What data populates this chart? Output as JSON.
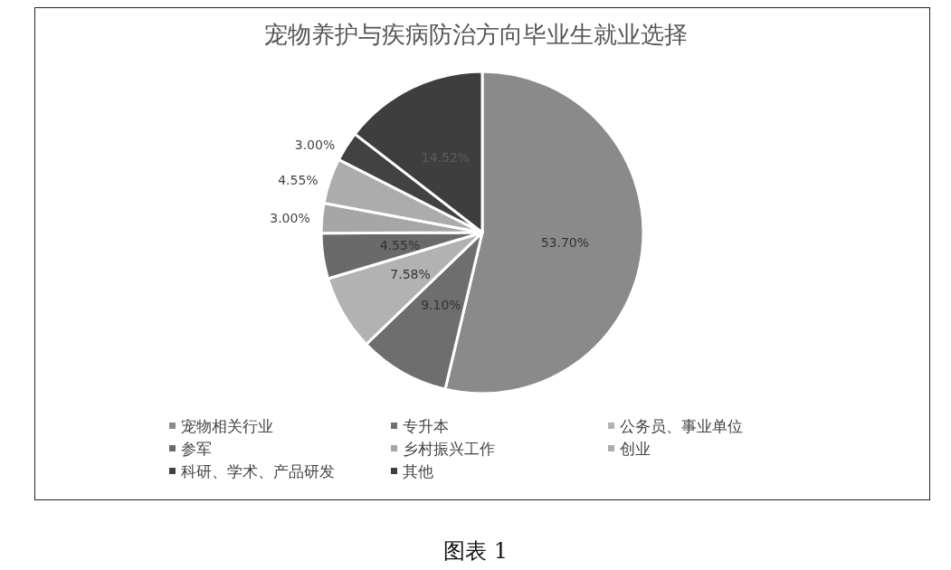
{
  "chart_data": {
    "type": "pie",
    "title": "宠物养护与疾病防治方向毕业生就业选择",
    "categories": [
      "宠物相关行业",
      "专升本",
      "公务员、事业单位",
      "参军",
      "乡村振兴工作",
      "创业",
      "科研、学术、产品研发",
      "其他"
    ],
    "values": [
      53.7,
      9.1,
      7.58,
      4.55,
      3.0,
      4.55,
      3.0,
      14.52
    ],
    "value_labels": [
      "53.70%",
      "9.10%",
      "7.58%",
      "4.55%",
      "3.00%",
      "4.55%",
      "3.00%",
      "14.52%"
    ],
    "colors": [
      "#8a8a8a",
      "#6e6e6e",
      "#b2b2b2",
      "#6a6a6a",
      "#a6a6a6",
      "#acacac",
      "#424242",
      "#3e3e3e"
    ],
    "legend": "bottom",
    "annotations": [
      "图表 1"
    ]
  }
}
